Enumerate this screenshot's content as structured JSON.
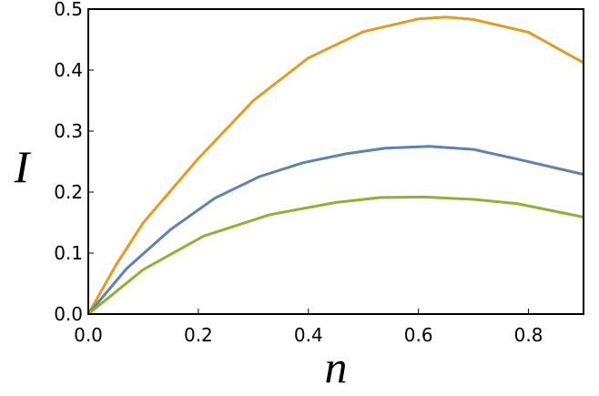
{
  "chart_data": {
    "type": "line",
    "xlabel": "n",
    "ylabel": "I",
    "xlim": [
      0,
      0.9
    ],
    "ylim": [
      0,
      0.5
    ],
    "xticks": [
      {
        "value": 0,
        "label": "0.0"
      },
      0.2,
      0.4,
      0.6,
      0.8
    ],
    "yticks": [
      {
        "value": 0,
        "label": "0.0"
      },
      0.1,
      0.2,
      0.3,
      0.4,
      0.5
    ],
    "series": [
      {
        "color": "#e19c24",
        "x": [
          0,
          0.05,
          0.1,
          0.2,
          0.3,
          0.4,
          0.5,
          0.6,
          0.65,
          0.7,
          0.8,
          0.9
        ],
        "values": [
          0,
          0.08,
          0.15,
          0.255,
          0.35,
          0.42,
          0.463,
          0.484,
          0.487,
          0.483,
          0.462,
          0.412
        ]
      },
      {
        "color": "#5e81b5",
        "x": [
          0,
          0.07,
          0.15,
          0.23,
          0.31,
          0.39,
          0.47,
          0.54,
          0.62,
          0.7,
          0.78,
          0.9
        ],
        "values": [
          0,
          0.075,
          0.139,
          0.19,
          0.225,
          0.248,
          0.263,
          0.272,
          0.275,
          0.27,
          0.254,
          0.229
        ]
      },
      {
        "color": "#8fb131",
        "x": [
          0,
          0.1,
          0.21,
          0.33,
          0.45,
          0.53,
          0.61,
          0.7,
          0.78,
          0.9
        ],
        "values": [
          0,
          0.073,
          0.128,
          0.163,
          0.183,
          0.191,
          0.192,
          0.188,
          0.181,
          0.159
        ]
      }
    ]
  }
}
